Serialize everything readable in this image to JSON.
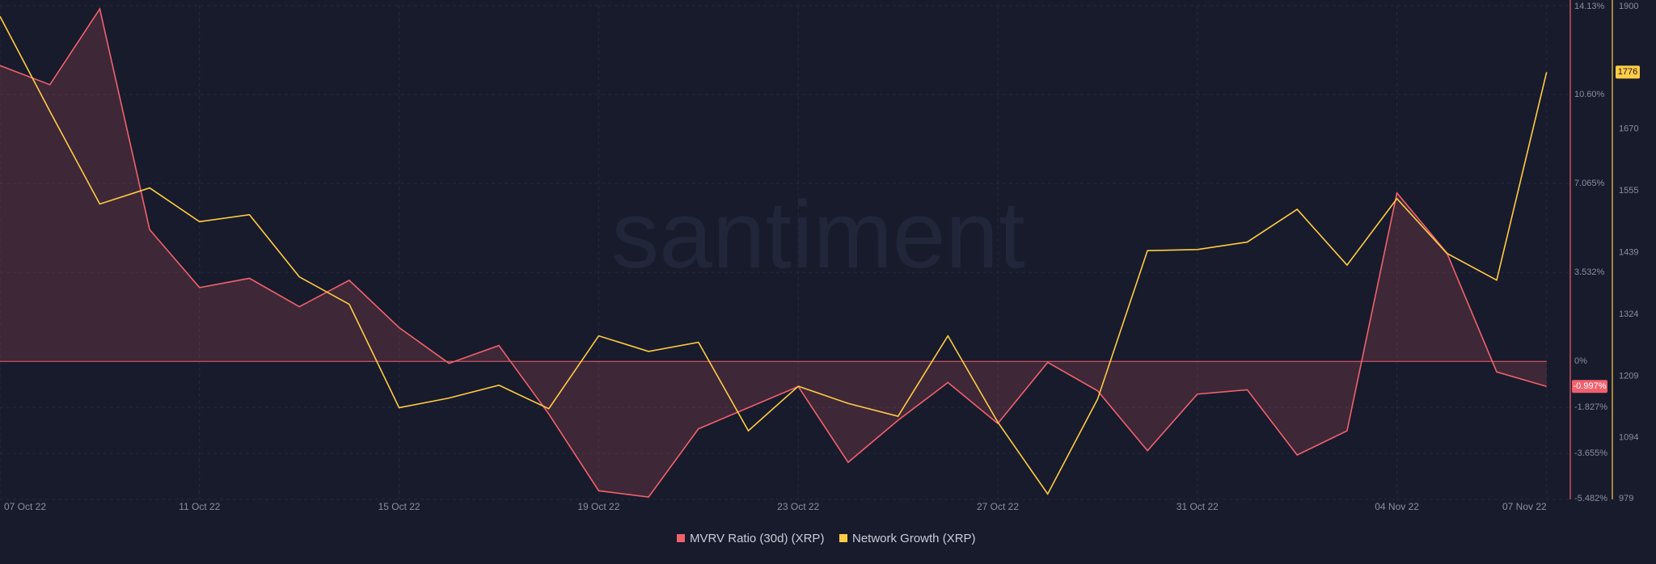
{
  "chart_data": {
    "type": "line",
    "watermark": "santiment",
    "categories": [
      "07 Oct 22",
      null,
      null,
      null,
      "11 Oct 22",
      null,
      null,
      null,
      "15 Oct 22",
      null,
      null,
      null,
      "19 Oct 22",
      null,
      null,
      null,
      "23 Oct 22",
      null,
      null,
      null,
      "27 Oct 22",
      null,
      null,
      null,
      "31 Oct 22",
      null,
      null,
      null,
      "04 Nov 22",
      null,
      null,
      "07 Nov 22"
    ],
    "series": [
      {
        "name": "MVRV Ratio (30d) (XRP)",
        "color": "#f0616d",
        "fill": true,
        "values": [
          11.75,
          10.99,
          14.0,
          5.23,
          2.93,
          3.3,
          2.17,
          3.22,
          1.34,
          -0.08,
          0.63,
          -2.09,
          -5.14,
          -5.39,
          -2.68,
          -1.84,
          -1.0,
          -4.01,
          -2.34,
          -0.84,
          -2.47,
          -0.04,
          -1.17,
          -3.55,
          -1.3,
          -1.13,
          -3.72,
          -2.76,
          6.69,
          4.31,
          -0.42,
          -0.997
        ],
        "value_labels": [
          null,
          null,
          null,
          null,
          null,
          null,
          null,
          null,
          null,
          null,
          null,
          null,
          null,
          null,
          null,
          null,
          null,
          null,
          null,
          null,
          null,
          null,
          null,
          null,
          null,
          null,
          null,
          null,
          null,
          null,
          null,
          "-0.997%"
        ]
      },
      {
        "name": "Network Growth (XRP)",
        "color": "#ffcc45",
        "axis": "y2",
        "values": [
          1880,
          1703,
          1530,
          1560,
          1497,
          1510,
          1394,
          1343,
          1150,
          1168,
          1192,
          1148,
          1284,
          1255,
          1272,
          1107,
          1190,
          1158,
          1134,
          1284,
          1123,
          989,
          1166,
          1443,
          1445,
          1459,
          1520,
          1416,
          1540,
          1438,
          1388,
          1776
        ],
        "value_labels": [
          null,
          null,
          null,
          null,
          null,
          null,
          null,
          null,
          null,
          null,
          null,
          null,
          null,
          null,
          null,
          null,
          null,
          null,
          null,
          null,
          null,
          null,
          null,
          null,
          null,
          null,
          null,
          null,
          null,
          null,
          null,
          "1776"
        ]
      }
    ],
    "ylim": [
      -5.482,
      14.13
    ],
    "yticks": [
      {
        "value": 14.13,
        "label": "14.13%"
      },
      {
        "value": 10.6,
        "label": "10.60%"
      },
      {
        "value": 7.065,
        "label": "7.065%"
      },
      {
        "value": 3.532,
        "label": "3.532%"
      },
      {
        "value": 0,
        "label": "0%"
      },
      {
        "value": -1.827,
        "label": "-1.827%"
      },
      {
        "value": -3.655,
        "label": "-3.655%"
      },
      {
        "value": -5.482,
        "label": "-5.482%"
      }
    ],
    "y2lim": [
      979,
      1900
    ],
    "y2ticks": [
      1900,
      1670,
      1555,
      1439,
      1324,
      1209,
      1094,
      979
    ],
    "grid": true,
    "legend": "bottom"
  }
}
